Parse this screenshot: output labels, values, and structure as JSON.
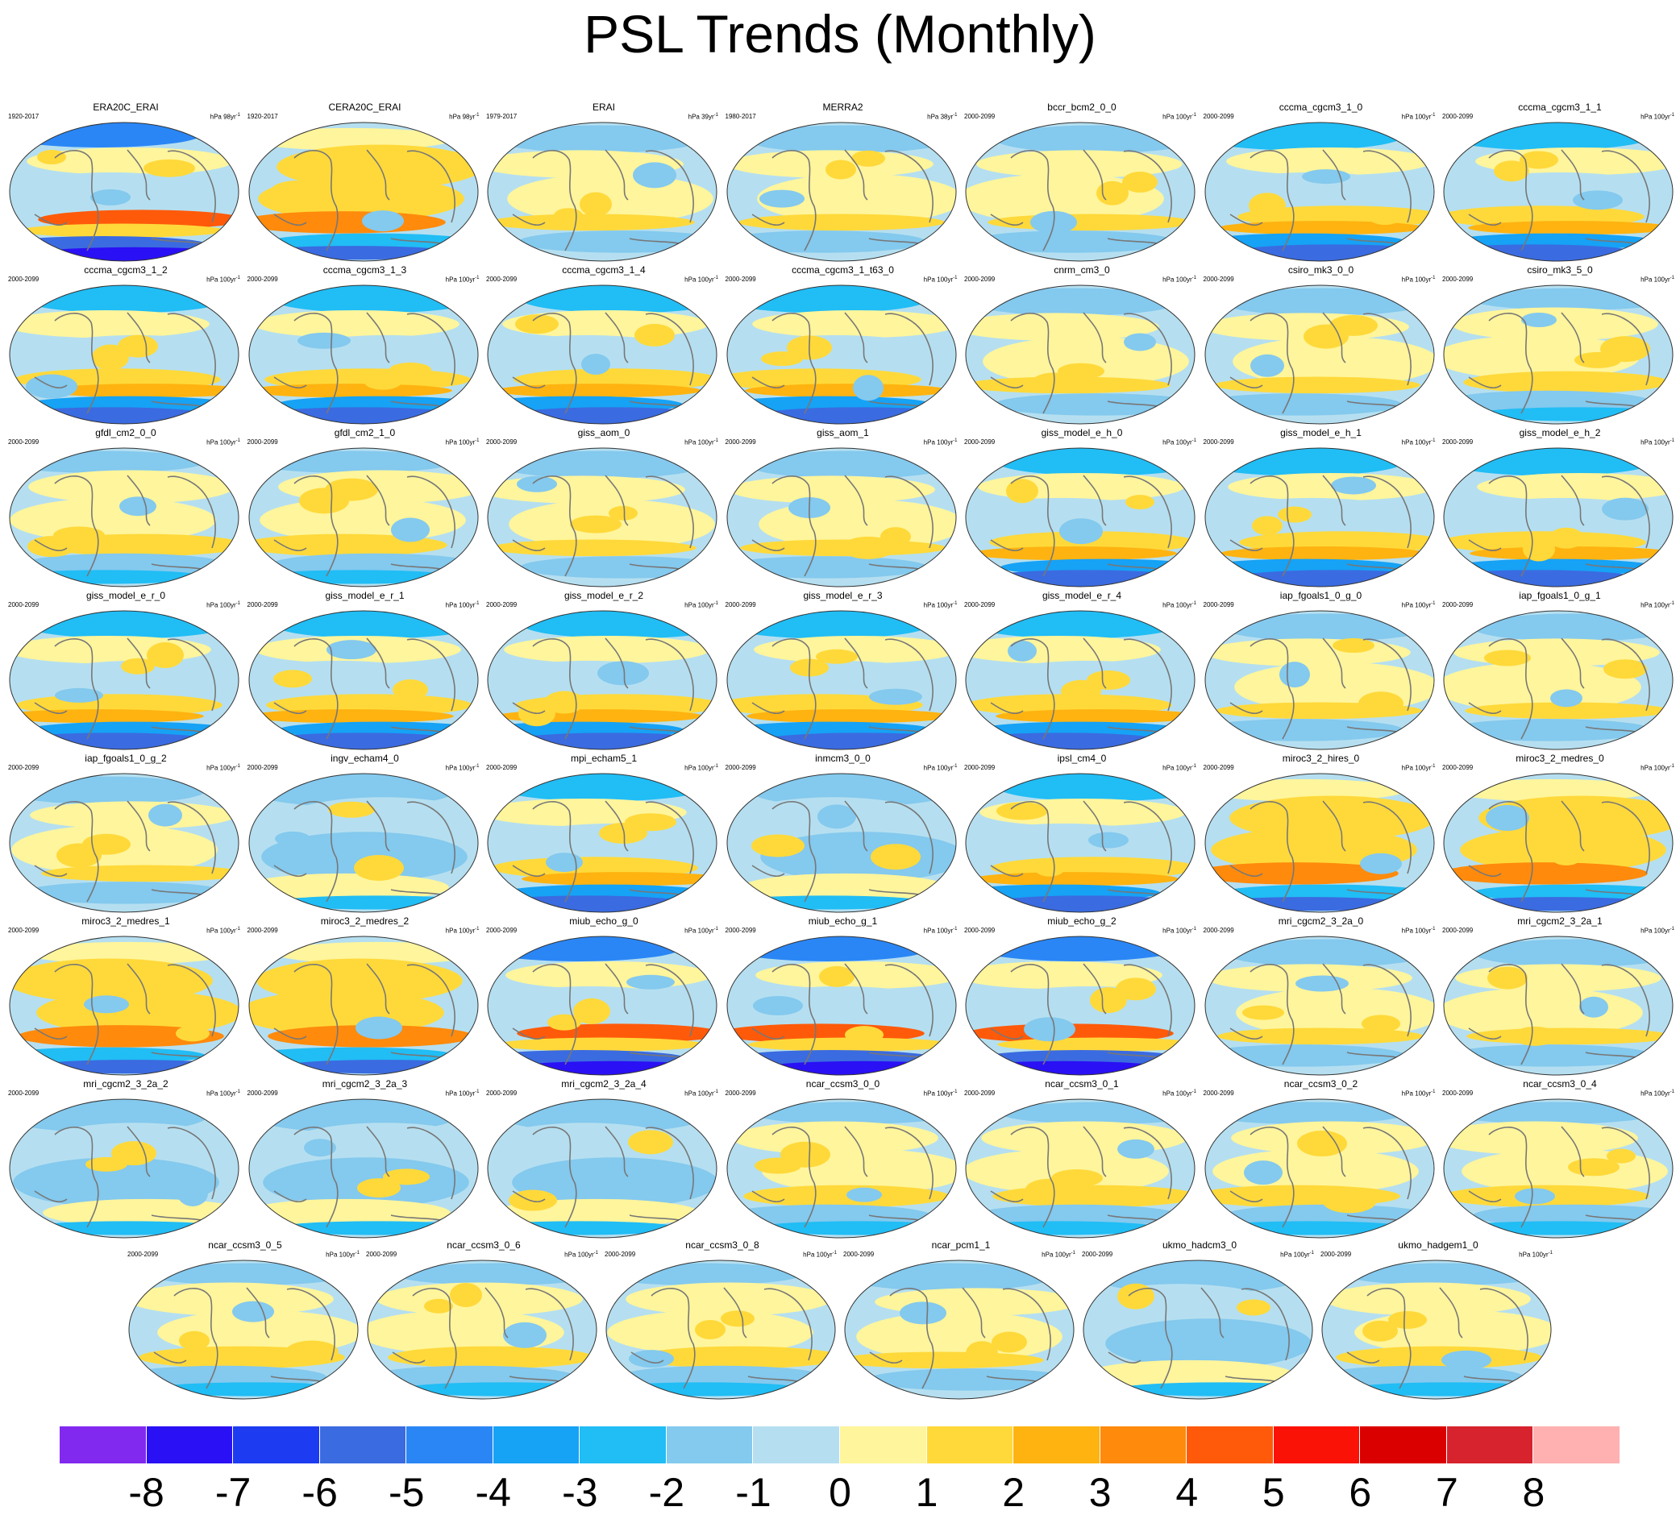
{
  "title": "PSL Trends (Monthly)",
  "units": {
    "prefix": "hPa",
    "obs": [
      "98yr",
      "98yr",
      "39yr",
      "38yr"
    ],
    "model": "100yr",
    "exponent": "-1"
  },
  "colorbar": {
    "labels": [
      "-8",
      "-7",
      "-6",
      "-5",
      "-4",
      "-3",
      "-2",
      "-1",
      "0",
      "1",
      "2",
      "3",
      "4",
      "5",
      "6",
      "7",
      "8"
    ],
    "colors": [
      "#8229f0",
      "#2a10f5",
      "#1d3bf0",
      "#3b6be0",
      "#2a86f5",
      "#16a2f5",
      "#21bdf5",
      "#84c9ee",
      "#b5dff0",
      "#fff59c",
      "#ffd93a",
      "#ffb310",
      "#ff8a0c",
      "#ff5a0a",
      "#fb1207",
      "#db0000",
      "#d7232e",
      "#ffb0b0"
    ]
  },
  "chart_data": {
    "type": "heatmap",
    "title": "PSL Trends (Monthly)",
    "variable": "PSL",
    "levels": [
      -8,
      -7,
      -6,
      -5,
      -4,
      -3,
      -2,
      -1,
      0,
      1,
      2,
      3,
      4,
      5,
      6,
      7,
      8
    ],
    "panels": [
      {
        "name": "ERA20C_ERAI",
        "period": "1920-2017",
        "units_yr": "98yr",
        "trend_pattern": "strong negative Southern Ocean",
        "style": 4
      },
      {
        "name": "CERA20C_ERAI",
        "period": "1920-2017",
        "units_yr": "98yr",
        "trend_pattern": "positive midlatitude, negative Antarctic",
        "style": 3
      },
      {
        "name": "ERAI",
        "period": "1979-2017",
        "units_yr": "39yr",
        "trend_pattern": "weak mixed",
        "style": 0
      },
      {
        "name": "MERRA2",
        "period": "1980-2017",
        "units_yr": "38yr",
        "trend_pattern": "weak mixed",
        "style": 0
      },
      {
        "name": "bccr_bcm2_0_0",
        "period": "2000-2099",
        "units_yr": "100yr",
        "trend_pattern": "weak positive",
        "style": 0
      },
      {
        "name": "cccma_cgcm3_1_0",
        "period": "2000-2099",
        "units_yr": "100yr",
        "style": 1
      },
      {
        "name": "cccma_cgcm3_1_1",
        "period": "2000-2099",
        "units_yr": "100yr",
        "style": 1
      },
      {
        "name": "cccma_cgcm3_1_2",
        "period": "2000-2099",
        "units_yr": "100yr",
        "style": 1
      },
      {
        "name": "cccma_cgcm3_1_3",
        "period": "2000-2099",
        "units_yr": "100yr",
        "style": 1
      },
      {
        "name": "cccma_cgcm3_1_4",
        "period": "2000-2099",
        "units_yr": "100yr",
        "style": 1
      },
      {
        "name": "cccma_cgcm3_1_t63_0",
        "period": "2000-2099",
        "units_yr": "100yr",
        "style": 1
      },
      {
        "name": "cnrm_cm3_0",
        "period": "2000-2099",
        "units_yr": "100yr",
        "style": 0
      },
      {
        "name": "csiro_mk3_0_0",
        "period": "2000-2099",
        "units_yr": "100yr",
        "style": 0
      },
      {
        "name": "csiro_mk3_5_0",
        "period": "2000-2099",
        "units_yr": "100yr",
        "style": 2
      },
      {
        "name": "gfdl_cm2_0_0",
        "period": "2000-2099",
        "units_yr": "100yr",
        "style": 2
      },
      {
        "name": "gfdl_cm2_1_0",
        "period": "2000-2099",
        "units_yr": "100yr",
        "style": 2
      },
      {
        "name": "giss_aom_0",
        "period": "2000-2099",
        "units_yr": "100yr",
        "style": 0
      },
      {
        "name": "giss_aom_1",
        "period": "2000-2099",
        "units_yr": "100yr",
        "style": 0
      },
      {
        "name": "giss_model_e_h_0",
        "period": "2000-2099",
        "units_yr": "100yr",
        "style": 1
      },
      {
        "name": "giss_model_e_h_1",
        "period": "2000-2099",
        "units_yr": "100yr",
        "style": 1
      },
      {
        "name": "giss_model_e_h_2",
        "period": "2000-2099",
        "units_yr": "100yr",
        "style": 1
      },
      {
        "name": "giss_model_e_r_0",
        "period": "2000-2099",
        "units_yr": "100yr",
        "style": 1
      },
      {
        "name": "giss_model_e_r_1",
        "period": "2000-2099",
        "units_yr": "100yr",
        "style": 1
      },
      {
        "name": "giss_model_e_r_2",
        "period": "2000-2099",
        "units_yr": "100yr",
        "style": 1
      },
      {
        "name": "giss_model_e_r_3",
        "period": "2000-2099",
        "units_yr": "100yr",
        "style": 1
      },
      {
        "name": "giss_model_e_r_4",
        "period": "2000-2099",
        "units_yr": "100yr",
        "style": 1
      },
      {
        "name": "iap_fgoals1_0_g_0",
        "period": "2000-2099",
        "units_yr": "100yr",
        "style": 0
      },
      {
        "name": "iap_fgoals1_0_g_1",
        "period": "2000-2099",
        "units_yr": "100yr",
        "style": 0
      },
      {
        "name": "iap_fgoals1_0_g_2",
        "period": "2000-2099",
        "units_yr": "100yr",
        "style": 0
      },
      {
        "name": "ingv_echam4_0",
        "period": "2000-2099",
        "units_yr": "100yr",
        "style": 5
      },
      {
        "name": "mpi_echam5_1",
        "period": "2000-2099",
        "units_yr": "100yr",
        "style": 1
      },
      {
        "name": "inmcm3_0_0",
        "period": "2000-2099",
        "units_yr": "100yr",
        "style": 5
      },
      {
        "name": "ipsl_cm4_0",
        "period": "2000-2099",
        "units_yr": "100yr",
        "style": 1
      },
      {
        "name": "miroc3_2_hires_0",
        "period": "2000-2099",
        "units_yr": "100yr",
        "style": 3
      },
      {
        "name": "miroc3_2_medres_0",
        "period": "2000-2099",
        "units_yr": "100yr",
        "style": 3
      },
      {
        "name": "miroc3_2_medres_1",
        "period": "2000-2099",
        "units_yr": "100yr",
        "style": 3
      },
      {
        "name": "miroc3_2_medres_2",
        "period": "2000-2099",
        "units_yr": "100yr",
        "style": 3
      },
      {
        "name": "miub_echo_g_0",
        "period": "2000-2099",
        "units_yr": "100yr",
        "style": 4
      },
      {
        "name": "miub_echo_g_1",
        "period": "2000-2099",
        "units_yr": "100yr",
        "style": 4
      },
      {
        "name": "miub_echo_g_2",
        "period": "2000-2099",
        "units_yr": "100yr",
        "style": 4
      },
      {
        "name": "mri_cgcm2_3_2a_0",
        "period": "2000-2099",
        "units_yr": "100yr",
        "style": 0
      },
      {
        "name": "mri_cgcm2_3_2a_1",
        "period": "2000-2099",
        "units_yr": "100yr",
        "style": 0
      },
      {
        "name": "mri_cgcm2_3_2a_2",
        "period": "2000-2099",
        "units_yr": "100yr",
        "style": 5
      },
      {
        "name": "mri_cgcm2_3_2a_3",
        "period": "2000-2099",
        "units_yr": "100yr",
        "style": 5
      },
      {
        "name": "mri_cgcm2_3_2a_4",
        "period": "2000-2099",
        "units_yr": "100yr",
        "style": 5
      },
      {
        "name": "ncar_ccsm3_0_0",
        "period": "2000-2099",
        "units_yr": "100yr",
        "style": 2
      },
      {
        "name": "ncar_ccsm3_0_1",
        "period": "2000-2099",
        "units_yr": "100yr",
        "style": 2
      },
      {
        "name": "ncar_ccsm3_0_2",
        "period": "2000-2099",
        "units_yr": "100yr",
        "style": 2
      },
      {
        "name": "ncar_ccsm3_0_4",
        "period": "2000-2099",
        "units_yr": "100yr",
        "style": 2
      },
      {
        "name": "ncar_ccsm3_0_5",
        "period": "2000-2099",
        "units_yr": "100yr",
        "style": 2
      },
      {
        "name": "ncar_ccsm3_0_6",
        "period": "2000-2099",
        "units_yr": "100yr",
        "style": 2
      },
      {
        "name": "ncar_ccsm3_0_8",
        "period": "2000-2099",
        "units_yr": "100yr",
        "style": 2
      },
      {
        "name": "ncar_pcm1_1",
        "period": "2000-2099",
        "units_yr": "100yr",
        "style": 0
      },
      {
        "name": "ukmo_hadcm3_0",
        "period": "2000-2099",
        "units_yr": "100yr",
        "style": 5
      },
      {
        "name": "ukmo_hadgem1_0",
        "period": "2000-2099",
        "units_yr": "100yr",
        "style": 2
      }
    ]
  }
}
